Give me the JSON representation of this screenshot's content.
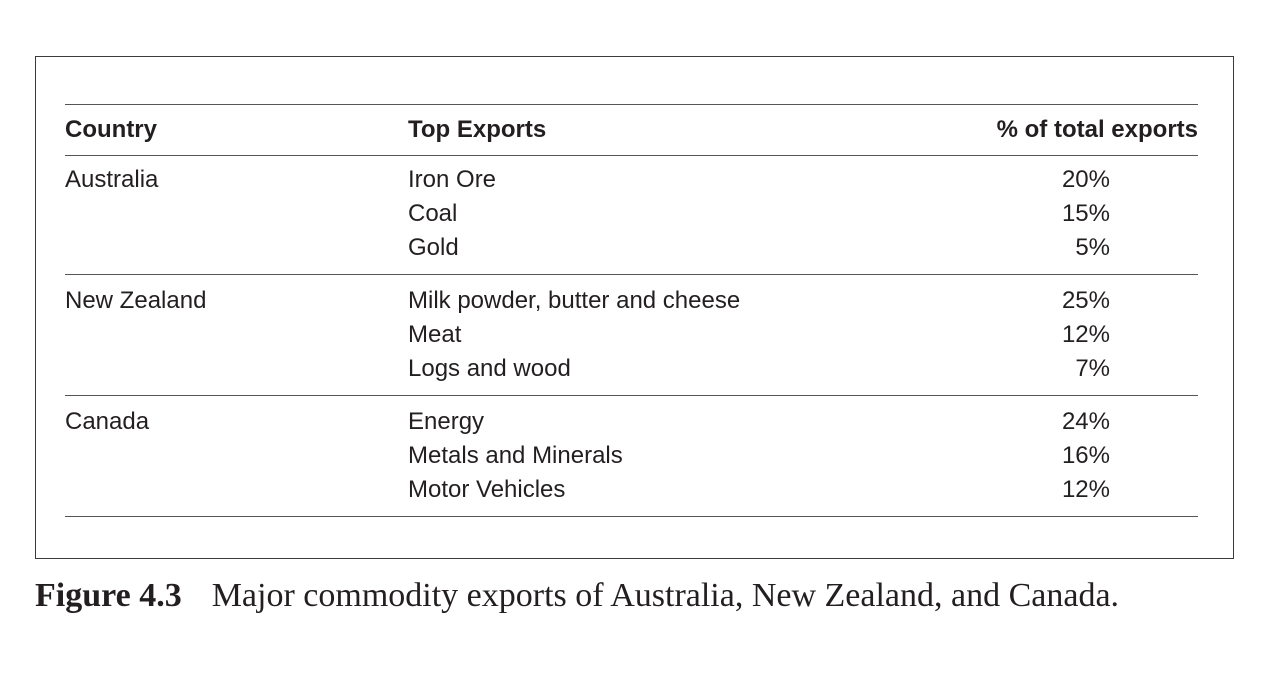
{
  "table": {
    "headers": [
      "Country",
      "Top Exports",
      "% of total exports"
    ],
    "groups": [
      {
        "country": "Australia",
        "exports": [
          {
            "name": "Iron Ore",
            "share": "20%"
          },
          {
            "name": "Coal",
            "share": "15%"
          },
          {
            "name": "Gold",
            "share": "5%"
          }
        ]
      },
      {
        "country": "New Zealand",
        "exports": [
          {
            "name": "Milk powder, butter and cheese",
            "share": "25%"
          },
          {
            "name": "Meat",
            "share": "12%"
          },
          {
            "name": "Logs and wood",
            "share": "7%"
          }
        ]
      },
      {
        "country": "Canada",
        "exports": [
          {
            "name": "Energy",
            "share": "24%"
          },
          {
            "name": "Metals and Minerals",
            "share": "16%"
          },
          {
            "name": "Motor Vehicles",
            "share": "12%"
          }
        ]
      }
    ]
  },
  "caption": {
    "label": "Figure 4.3",
    "text": "Major commodity exports of Australia, New Zealand, and Canada."
  }
}
